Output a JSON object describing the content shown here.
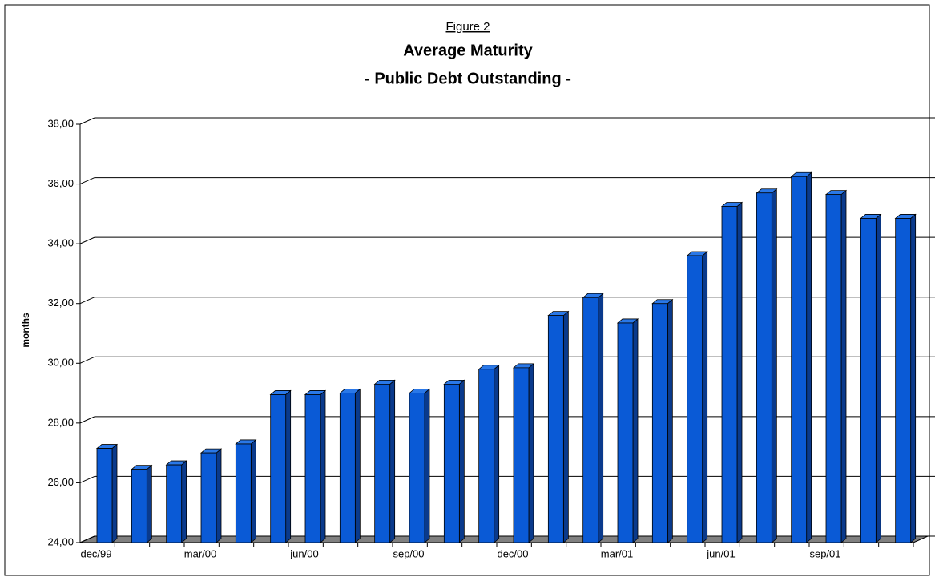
{
  "chart_data": {
    "type": "bar3d",
    "figure_label": "Figure 2",
    "title": "Average Maturity",
    "subtitle": "- Public Debt Outstanding -",
    "y_label": "months",
    "categories": [
      "dec/99",
      null,
      null,
      "mar/00",
      null,
      null,
      "jun/00",
      null,
      null,
      "sep/00",
      null,
      null,
      "dec/00",
      null,
      null,
      "mar/01",
      null,
      null,
      "jun/01",
      null,
      null,
      "sep/01",
      null,
      null
    ],
    "values": [
      27.15,
      26.45,
      26.6,
      27.0,
      27.3,
      28.95,
      28.95,
      29.0,
      29.3,
      29.0,
      29.3,
      29.8,
      29.85,
      31.6,
      32.2,
      31.35,
      32.0,
      33.6,
      35.25,
      35.7,
      36.25,
      35.65,
      34.85,
      34.85
    ],
    "color": "#0a5ad6",
    "ylim": [
      24,
      38
    ],
    "yticks": [
      {
        "value": 24,
        "label": "24,00"
      },
      {
        "value": 26,
        "label": "26,00"
      },
      {
        "value": 28,
        "label": "28,00"
      },
      {
        "value": 30,
        "label": "30,00"
      },
      {
        "value": 32,
        "label": "32,00"
      },
      {
        "value": 34,
        "label": "34,00"
      },
      {
        "value": 36,
        "label": "36,00"
      },
      {
        "value": 38,
        "label": "38,00"
      }
    ],
    "grid": true
  }
}
